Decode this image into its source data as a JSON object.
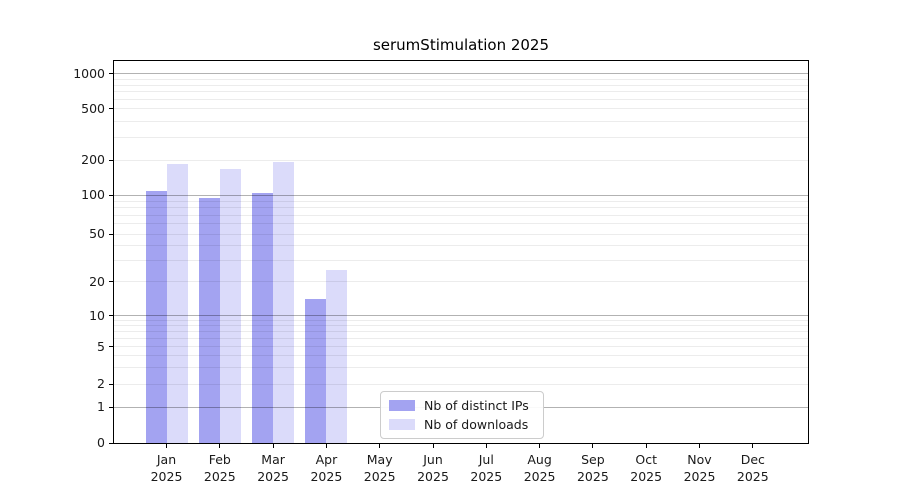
{
  "chart_data": {
    "type": "bar",
    "title": "serumStimulation 2025",
    "xlabel": "",
    "ylabel": "",
    "yscale": "symlog",
    "ylim": [
      0,
      2000
    ],
    "yticks": [
      0,
      1,
      2,
      5,
      10,
      20,
      50,
      100,
      200,
      500,
      1000
    ],
    "grid": {
      "horizontal": true,
      "log_minor_ticks": true
    },
    "legend_position": "lower-center",
    "categories": [
      "Jan 2025",
      "Feb 2025",
      "Mar 2025",
      "Apr 2025",
      "May 2025",
      "Jun 2025",
      "Jul 2025",
      "Aug 2025",
      "Sep 2025",
      "Oct 2025",
      "Nov 2025",
      "Dec 2025"
    ],
    "series": [
      {
        "name": "Nb of distinct IPs",
        "color": "#a3a3f1",
        "values": [
          110,
          95,
          105,
          14,
          0,
          0,
          0,
          0,
          0,
          0,
          0,
          0
        ]
      },
      {
        "name": "Nb of downloads",
        "color": "#dbdbfa",
        "values": [
          185,
          170,
          195,
          25,
          0,
          0,
          0,
          0,
          0,
          0,
          0,
          0
        ]
      }
    ]
  }
}
